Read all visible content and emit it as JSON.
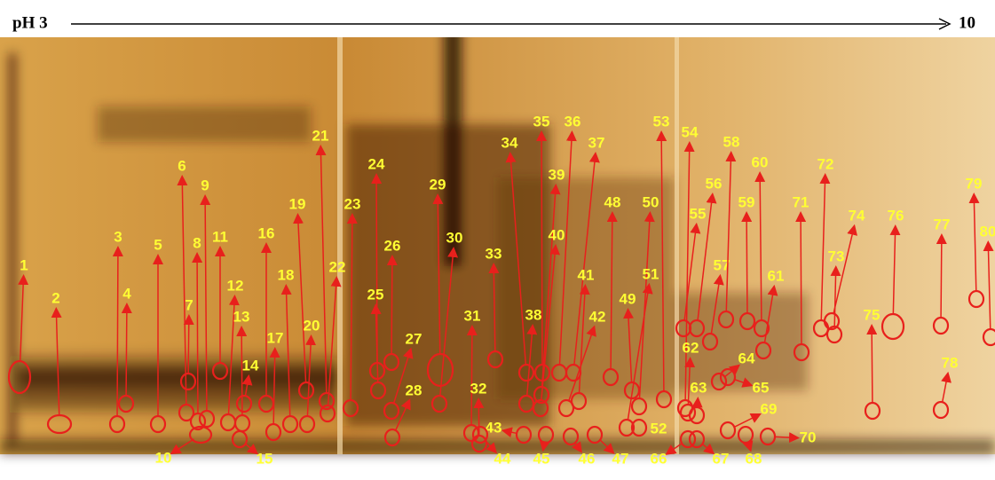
{
  "header": {
    "left": "pH 3",
    "right": "10"
  },
  "spots": [
    {
      "label": "1"
    },
    {
      "label": "2"
    },
    {
      "label": "3"
    },
    {
      "label": "4"
    },
    {
      "label": "5"
    },
    {
      "label": "6"
    },
    {
      "label": "7"
    },
    {
      "label": "8"
    },
    {
      "label": "9"
    },
    {
      "label": "10"
    },
    {
      "label": "11"
    },
    {
      "label": "12"
    },
    {
      "label": "13"
    },
    {
      "label": "14"
    },
    {
      "label": "15"
    },
    {
      "label": "16"
    },
    {
      "label": "17"
    },
    {
      "label": "18"
    },
    {
      "label": "19"
    },
    {
      "label": "20"
    },
    {
      "label": "21"
    },
    {
      "label": "22"
    },
    {
      "label": "23"
    },
    {
      "label": "24"
    },
    {
      "label": "25"
    },
    {
      "label": "26"
    },
    {
      "label": "27"
    },
    {
      "label": "28"
    },
    {
      "label": "29"
    },
    {
      "label": "30"
    },
    {
      "label": "31"
    },
    {
      "label": "32"
    },
    {
      "label": "33"
    },
    {
      "label": "34"
    },
    {
      "label": "35"
    },
    {
      "label": "36"
    },
    {
      "label": "37"
    },
    {
      "label": "38"
    },
    {
      "label": "39"
    },
    {
      "label": "40"
    },
    {
      "label": "41"
    },
    {
      "label": "42"
    },
    {
      "label": "43"
    },
    {
      "label": "44"
    },
    {
      "label": "45"
    },
    {
      "label": "46"
    },
    {
      "label": "47"
    },
    {
      "label": "48"
    },
    {
      "label": "49"
    },
    {
      "label": "50"
    },
    {
      "label": "51"
    },
    {
      "label": "52"
    },
    {
      "label": "53"
    },
    {
      "label": "54"
    },
    {
      "label": "55"
    },
    {
      "label": "56"
    },
    {
      "label": "57"
    },
    {
      "label": "58"
    },
    {
      "label": "59"
    },
    {
      "label": "60"
    },
    {
      "label": "61"
    },
    {
      "label": "62"
    },
    {
      "label": "63"
    },
    {
      "label": "64"
    },
    {
      "label": "65"
    },
    {
      "label": "66"
    },
    {
      "label": "67"
    },
    {
      "label": "68"
    },
    {
      "label": "69"
    },
    {
      "label": "70"
    },
    {
      "label": "71"
    },
    {
      "label": "72"
    },
    {
      "label": "73"
    },
    {
      "label": "74"
    },
    {
      "label": "75"
    },
    {
      "label": "76"
    },
    {
      "label": "77"
    },
    {
      "label": "78"
    },
    {
      "label": "79"
    },
    {
      "label": "80"
    }
  ]
}
